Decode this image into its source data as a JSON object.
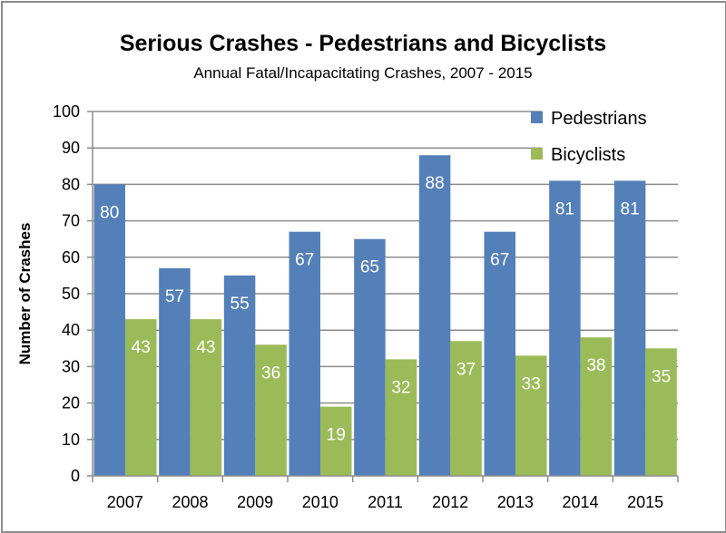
{
  "chart_data": {
    "type": "bar",
    "title": "Serious Crashes - Pedestrians and Bicyclists",
    "subtitle": "Annual Fatal/Incapacitating Crashes, 2007 - 2015",
    "xlabel": "",
    "ylabel": "Number of Crashes",
    "ylim": [
      0,
      100
    ],
    "yticks": [
      0,
      10,
      20,
      30,
      40,
      50,
      60,
      70,
      80,
      90,
      100
    ],
    "grid": true,
    "legend_position": "top-right",
    "categories": [
      "2007",
      "2008",
      "2009",
      "2010",
      "2011",
      "2012",
      "2013",
      "2014",
      "2015"
    ],
    "series": [
      {
        "name": "Pedestrians",
        "color": "#5480b9",
        "values": [
          80,
          57,
          55,
          67,
          65,
          88,
          67,
          81,
          81
        ]
      },
      {
        "name": "Bicyclists",
        "color": "#9bbb59",
        "values": [
          43,
          43,
          36,
          19,
          32,
          37,
          33,
          38,
          35
        ]
      }
    ],
    "data_labels": true
  }
}
